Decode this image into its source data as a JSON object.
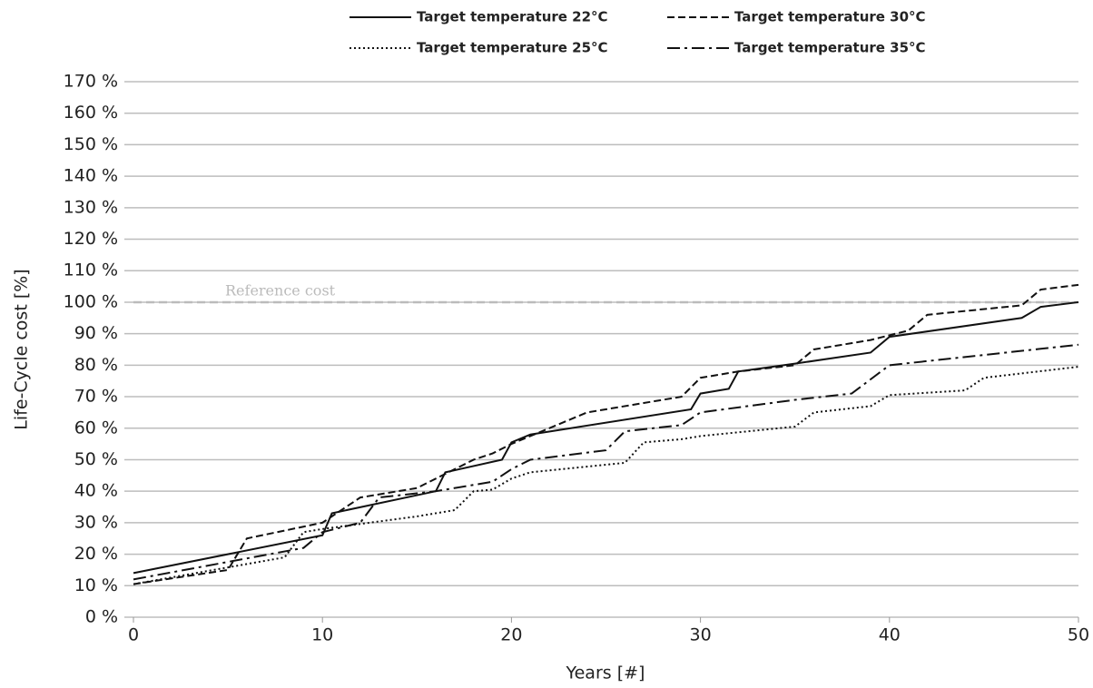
{
  "chart_data": {
    "type": "line",
    "x_label": "Years [#]",
    "y_label": "Life-Cycle cost [%]",
    "xlim": [
      0,
      50
    ],
    "xticks": [
      0,
      10,
      20,
      30,
      40,
      50
    ],
    "ylim": [
      0,
      170
    ],
    "yticks": [
      {
        "value": 0,
        "label": "0 %"
      },
      {
        "value": 10,
        "label": "10 %"
      },
      {
        "value": 20,
        "label": "20 %"
      },
      {
        "value": 30,
        "label": "30 %"
      },
      {
        "value": 40,
        "label": "40 %"
      },
      {
        "value": 50,
        "label": "50 %"
      },
      {
        "value": 60,
        "label": "60 %"
      },
      {
        "value": 70,
        "label": "70 %"
      },
      {
        "value": 80,
        "label": "80 %"
      },
      {
        "value": 90,
        "label": "90 %"
      },
      {
        "value": 100,
        "label": "100 %"
      },
      {
        "value": 110,
        "label": "110 %"
      },
      {
        "value": 120,
        "label": "120 %"
      },
      {
        "value": 130,
        "label": "130 %"
      },
      {
        "value": 140,
        "label": "140 %"
      },
      {
        "value": 150,
        "label": "150 %"
      },
      {
        "value": 160,
        "label": "160 %"
      },
      {
        "value": 170,
        "label": "170 %"
      }
    ],
    "grid": true,
    "legend": "top",
    "reference_line": {
      "value": 100,
      "label": "Reference cost",
      "color": "#bbbbbb"
    },
    "series": [
      {
        "name": "Target temperature 22°C",
        "color": "#111111",
        "line_style": "solid",
        "x": [
          0,
          10,
          10.5,
          16,
          16.5,
          19.5,
          20,
          21,
          29.5,
          30,
          31.5,
          32,
          35,
          39,
          40,
          47,
          48,
          50
        ],
        "values": [
          14,
          26,
          33,
          40,
          46,
          50,
          55.5,
          58,
          66,
          71,
          72.5,
          78,
          80.5,
          84,
          89,
          95,
          98.5,
          100
        ]
      },
      {
        "name": "Target temperature 30°C",
        "color": "#111111",
        "line_style": "dashed",
        "x": [
          0,
          5,
          6,
          10,
          12,
          15,
          18,
          19,
          20,
          24,
          29,
          30,
          32,
          35,
          36,
          39,
          41,
          42,
          47,
          48,
          50
        ],
        "values": [
          10.5,
          15,
          25,
          30,
          38,
          41,
          50,
          52,
          55,
          65,
          70,
          76,
          78,
          80,
          85,
          88,
          91,
          96,
          99,
          104,
          105.5
        ]
      },
      {
        "name": "Target temperature 25°C",
        "color": "#111111",
        "line_style": "dotted",
        "x": [
          0,
          8,
          9,
          10,
          15,
          17,
          18,
          19,
          20,
          21,
          26,
          27,
          29,
          30,
          35,
          36,
          39,
          40,
          44,
          45,
          50
        ],
        "values": [
          10.5,
          19,
          27,
          28,
          32,
          34,
          40,
          40.5,
          44,
          46,
          49,
          55.5,
          56.5,
          57.5,
          60.5,
          65,
          67,
          70.5,
          72,
          76,
          79.5
        ]
      },
      {
        "name": "Target temperature 35°C",
        "color": "#111111",
        "line_style": "dash-dot",
        "x": [
          0,
          9,
          10,
          12,
          13,
          16,
          19,
          20,
          21,
          25,
          26,
          29,
          30,
          35,
          38,
          40,
          50
        ],
        "values": [
          12,
          22,
          27,
          30,
          38,
          40,
          43,
          47,
          50,
          53,
          59,
          61,
          65,
          69,
          71,
          80,
          86.5
        ]
      }
    ]
  }
}
